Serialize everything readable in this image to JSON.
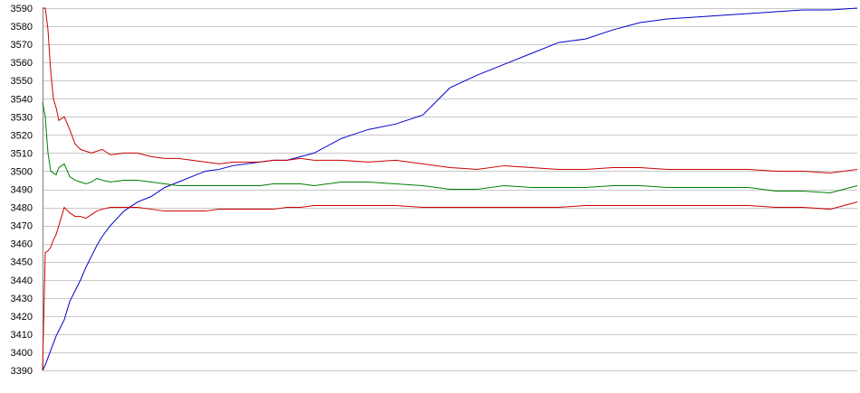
{
  "chart_data": {
    "type": "line",
    "title": "",
    "xlabel": "",
    "ylabel": "",
    "ylim": [
      3390,
      3590
    ],
    "yticks": [
      3390,
      3400,
      3410,
      3420,
      3430,
      3440,
      3450,
      3460,
      3470,
      3480,
      3490,
      3500,
      3510,
      3520,
      3530,
      3540,
      3550,
      3560,
      3570,
      3580,
      3590
    ],
    "grid": true,
    "legend": "none",
    "x": [
      0,
      1,
      2,
      3,
      4,
      5,
      6,
      8,
      10,
      12,
      14,
      16,
      18,
      20,
      22,
      25,
      30,
      35,
      40,
      45,
      50,
      55,
      60,
      65,
      70,
      75,
      80,
      85,
      90,
      95,
      100,
      110,
      120,
      130,
      140,
      150,
      160,
      170,
      180,
      190,
      200,
      210,
      220,
      230,
      240,
      250,
      260,
      270,
      280,
      290,
      300
    ],
    "series": [
      {
        "color": "#0000cc",
        "values": [
          3390,
          3393,
          3397,
          3401,
          3405,
          3409,
          3412,
          3418,
          3428,
          3434,
          3440,
          3447,
          3453,
          3459,
          3464,
          3470,
          3478,
          3483,
          3486,
          3491,
          3494,
          3497,
          3500,
          3501,
          3503,
          3504,
          3505,
          3506,
          3506,
          3508,
          3510,
          3518,
          3523,
          3526,
          3531,
          3546,
          3553,
          3559,
          3565,
          3571,
          3573,
          3578,
          3582,
          3584,
          3585,
          3586,
          3587,
          3588,
          3589,
          3589,
          3590
        ]
      },
      {
        "color": "#cc0000",
        "values": [
          3590,
          3590,
          3578,
          3555,
          3540,
          3535,
          3528,
          3530,
          3523,
          3515,
          3512,
          3511,
          3510,
          3511,
          3512,
          3509,
          3510,
          3510,
          3508,
          3507,
          3507,
          3506,
          3505,
          3504,
          3505,
          3505,
          3505,
          3506,
          3506,
          3507,
          3506,
          3506,
          3505,
          3506,
          3504,
          3502,
          3501,
          3503,
          3502,
          3501,
          3501,
          3502,
          3502,
          3501,
          3501,
          3501,
          3501,
          3500,
          3500,
          3499,
          3501
        ]
      },
      {
        "color": "#008000",
        "values": [
          3538,
          3530,
          3510,
          3500,
          3499,
          3498,
          3502,
          3504,
          3497,
          3495,
          3494,
          3493,
          3494,
          3496,
          3495,
          3494,
          3495,
          3495,
          3494,
          3493,
          3492,
          3492,
          3492,
          3492,
          3492,
          3492,
          3492,
          3493,
          3493,
          3493,
          3492,
          3494,
          3494,
          3493,
          3492,
          3490,
          3490,
          3492,
          3491,
          3491,
          3491,
          3492,
          3492,
          3491,
          3491,
          3491,
          3491,
          3489,
          3489,
          3488,
          3492
        ]
      },
      {
        "color": "#cc0000",
        "values": [
          3390,
          3455,
          3456,
          3458,
          3462,
          3465,
          3470,
          3480,
          3477,
          3475,
          3475,
          3474,
          3476,
          3478,
          3479,
          3480,
          3480,
          3480,
          3479,
          3478,
          3478,
          3478,
          3478,
          3479,
          3479,
          3479,
          3479,
          3479,
          3480,
          3480,
          3481,
          3481,
          3481,
          3481,
          3480,
          3480,
          3480,
          3480,
          3480,
          3480,
          3481,
          3481,
          3481,
          3481,
          3481,
          3481,
          3481,
          3480,
          3480,
          3479,
          3483
        ]
      }
    ]
  }
}
